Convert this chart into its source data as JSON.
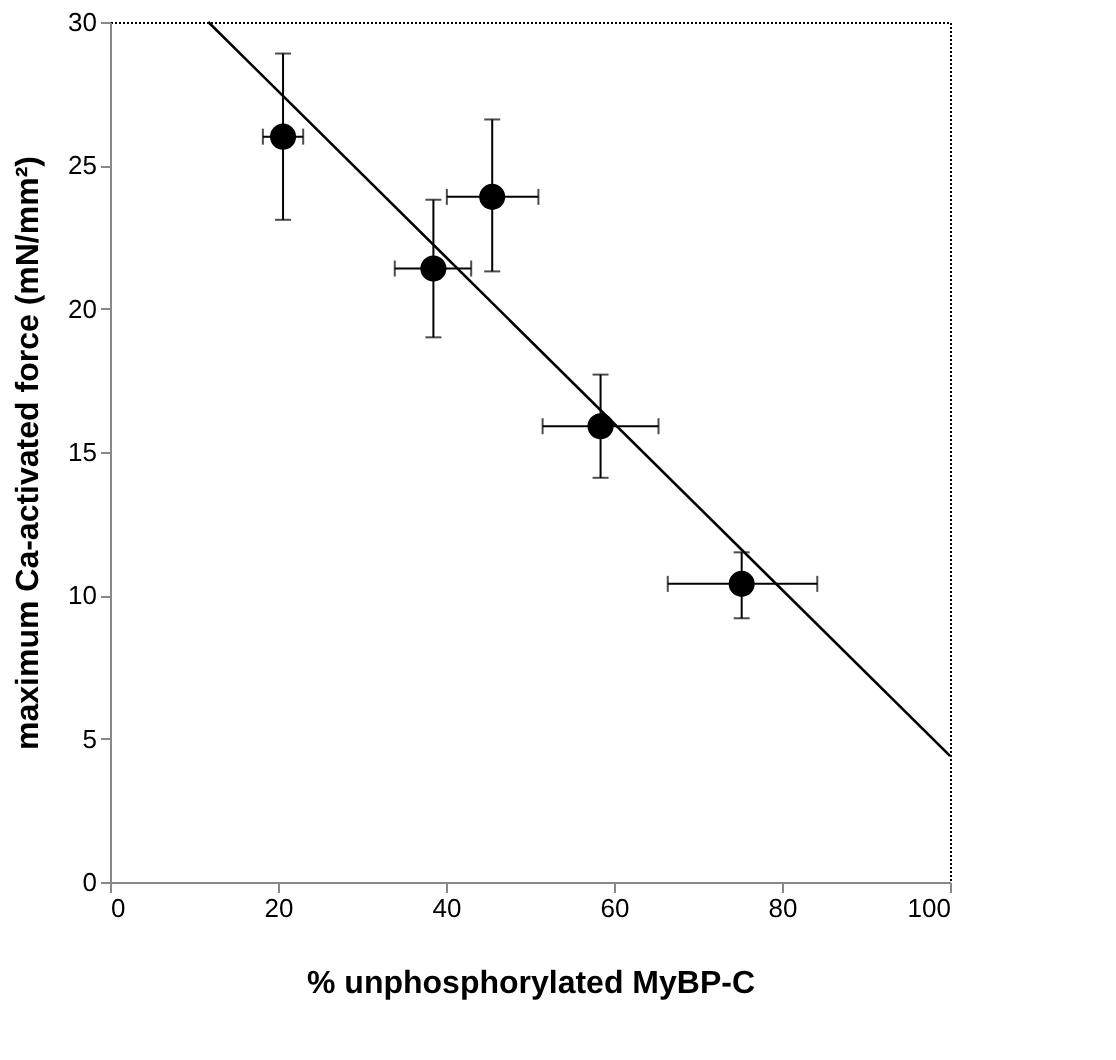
{
  "chart_data": {
    "type": "scatter",
    "xlabel": "% unphosphorylated MyBP-C",
    "ylabel": "maximum Ca-activated force (mN/mm²)",
    "xlim": [
      0,
      100
    ],
    "xticks": [
      0,
      20,
      40,
      60,
      80,
      100
    ],
    "ylim": [
      0,
      30
    ],
    "yticks": [
      0,
      5,
      10,
      15,
      20,
      25,
      30
    ],
    "grid": false,
    "series": [
      {
        "color": "#000000",
        "marker": "circle",
        "x": [
          20.6,
          38.5,
          45.5,
          58.4,
          75.2
        ],
        "values": [
          26.0,
          21.4,
          23.9,
          15.9,
          10.4
        ],
        "errors": [
          [
            23.1,
            28.9
          ],
          [
            19.0,
            23.8
          ],
          [
            21.3,
            26.6
          ],
          [
            14.1,
            17.7
          ],
          [
            9.2,
            11.5
          ]
        ],
        "xerrors": [
          [
            18.2,
            23.0
          ],
          [
            33.9,
            43.0
          ],
          [
            40.1,
            51.0
          ],
          [
            51.5,
            65.3
          ],
          [
            66.4,
            84.2
          ]
        ]
      },
      {
        "type": "line",
        "marker": "none",
        "color": "#000000",
        "x": [
          11.7,
          100
        ],
        "values": [
          30,
          4.4
        ]
      }
    ]
  }
}
